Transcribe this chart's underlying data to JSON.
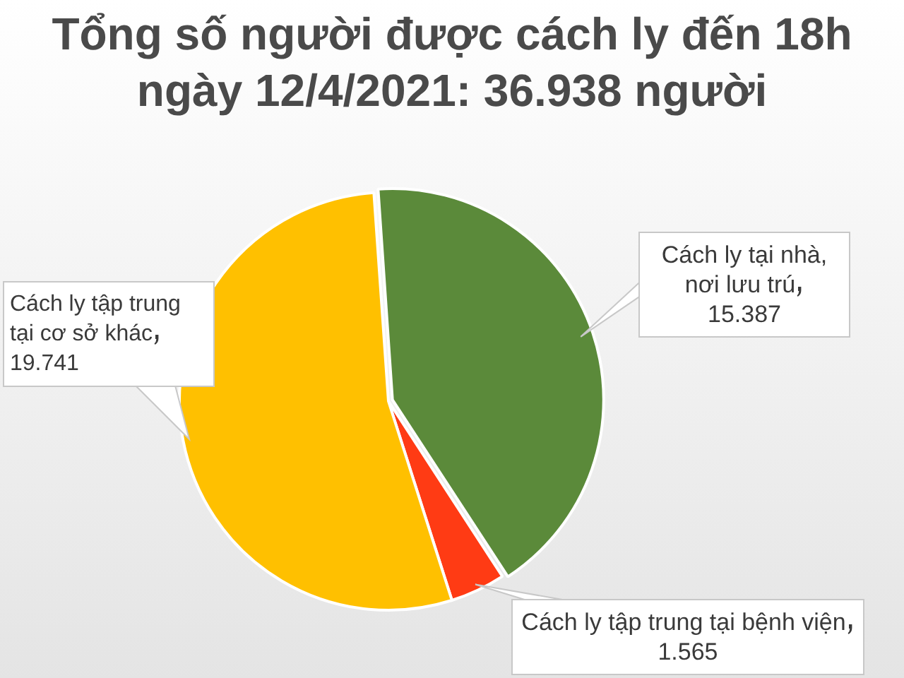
{
  "chart_data": {
    "type": "pie",
    "title": "Tổng số người được cách ly đến 18h ngày 12/4/2021: 36.938 người",
    "categories": [
      "Cách ly tại nhà, nơi lưu trú",
      "Cách ly tập trung tại bệnh viện",
      "Cách ly tập trung tại cơ sở khác"
    ],
    "values": [
      15387,
      1565,
      19741
    ],
    "value_labels": [
      "15.387",
      "1.565",
      "19.741"
    ],
    "colors": [
      "#5b8a3a",
      "#ff3b14",
      "#ffc000"
    ],
    "legend": false
  }
}
